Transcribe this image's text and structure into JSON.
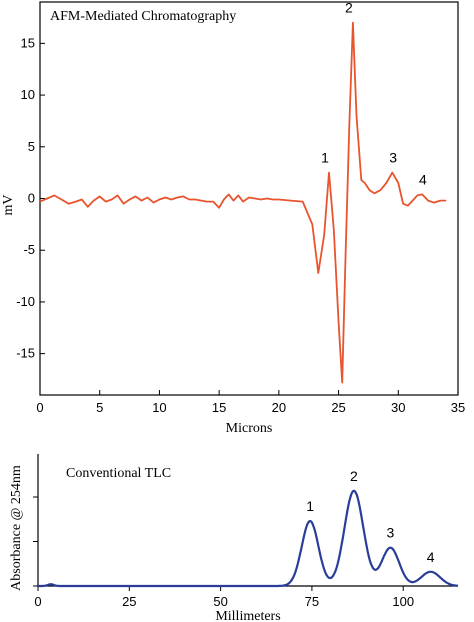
{
  "chart_data": [
    {
      "type": "line",
      "title": "AFM-Mediated Chromatography",
      "xlabel": "Microns",
      "ylabel": "mV",
      "xlim": [
        0,
        35
      ],
      "ylim": [
        -19,
        19
      ],
      "x_ticks": [
        0,
        5,
        10,
        15,
        20,
        25,
        30,
        35
      ],
      "y_ticks": [
        -15,
        -10,
        -5,
        0,
        5,
        10,
        15
      ],
      "grid": false,
      "line_color": "#e8542e",
      "series": [
        {
          "x": [
            0,
            0.6,
            1.2,
            1.8,
            2.4,
            3.0,
            3.5,
            4.0,
            4.5,
            5.0,
            5.5,
            6.0,
            6.5,
            7.0,
            7.5,
            8.0,
            8.5,
            9.0,
            9.5,
            10.0,
            10.5,
            11.0,
            11.5,
            12.0,
            12.5,
            13.0,
            13.5,
            14.0,
            14.5,
            15.0,
            15.4,
            15.8,
            16.2,
            16.6,
            17.0,
            17.5,
            18.0,
            18.5,
            19.0,
            19.5,
            20.0,
            21.0,
            22.0,
            22.8,
            23.3,
            23.8,
            24.2,
            24.6,
            25.0,
            25.3,
            25.6,
            25.9,
            26.2,
            26.5,
            26.9,
            27.2,
            27.6,
            28.0,
            28.5,
            29.0,
            29.5,
            30.0,
            30.4,
            30.8,
            31.2,
            31.6,
            32.0,
            32.5,
            33.0,
            33.5,
            34.0
          ],
          "y": [
            -0.3,
            0.0,
            0.3,
            -0.1,
            -0.5,
            -0.3,
            -0.1,
            -0.8,
            -0.2,
            0.2,
            -0.3,
            -0.1,
            0.3,
            -0.5,
            -0.1,
            0.2,
            -0.2,
            0.1,
            -0.4,
            -0.1,
            0.1,
            -0.1,
            0.1,
            0.2,
            -0.1,
            -0.1,
            -0.2,
            -0.3,
            -0.3,
            -0.9,
            -0.1,
            0.4,
            -0.2,
            0.3,
            -0.3,
            0.1,
            0.0,
            -0.1,
            0.0,
            -0.1,
            -0.1,
            -0.2,
            -0.3,
            -2.5,
            -7.2,
            -3.5,
            2.5,
            -3.0,
            -12.0,
            -17.8,
            -5.0,
            7.0,
            17.0,
            8.0,
            1.8,
            1.5,
            0.8,
            0.5,
            0.8,
            1.5,
            2.5,
            1.5,
            -0.5,
            -0.7,
            -0.2,
            0.3,
            0.4,
            -0.2,
            -0.4,
            -0.2,
            -0.2
          ]
        }
      ],
      "annotations": [
        {
          "text": "1",
          "x": 24.2,
          "y": 2.5
        },
        {
          "text": "2",
          "x": 26.2,
          "y": 17.0
        },
        {
          "text": "3",
          "x": 29.9,
          "y": 2.5
        },
        {
          "text": "4",
          "x": 32.4,
          "y": 0.4
        }
      ]
    },
    {
      "type": "line",
      "title": "Conventional TLC",
      "xlabel": "Millimeters",
      "ylabel": "Absorbance @ 254nm",
      "xlim": [
        0,
        115
      ],
      "ylim": [
        0,
        1
      ],
      "x_ticks": [
        0,
        25,
        50,
        75,
        100
      ],
      "y_ticks": [
        0,
        0.5,
        1
      ],
      "y_tick_labels": false,
      "grid": false,
      "line_color": "#2a3d9a",
      "series": [
        {
          "peaks": [
            {
              "center": 3.5,
              "height": 0.02,
              "sigma": 0.8
            },
            {
              "center": 74.5,
              "height": 0.73,
              "sigma": 2.3
            },
            {
              "center": 86.5,
              "height": 1.07,
              "sigma": 2.6
            },
            {
              "center": 96.5,
              "height": 0.43,
              "sigma": 2.4
            },
            {
              "center": 107.5,
              "height": 0.16,
              "sigma": 2.6
            }
          ],
          "baseline": 0.0
        }
      ],
      "annotations": [
        {
          "text": "1",
          "x": 74.5,
          "y": 0.73
        },
        {
          "text": "2",
          "x": 86.5,
          "y": 1.07
        },
        {
          "text": "3",
          "x": 96.5,
          "y": 0.43
        },
        {
          "text": "4",
          "x": 107.5,
          "y": 0.16
        }
      ]
    }
  ]
}
